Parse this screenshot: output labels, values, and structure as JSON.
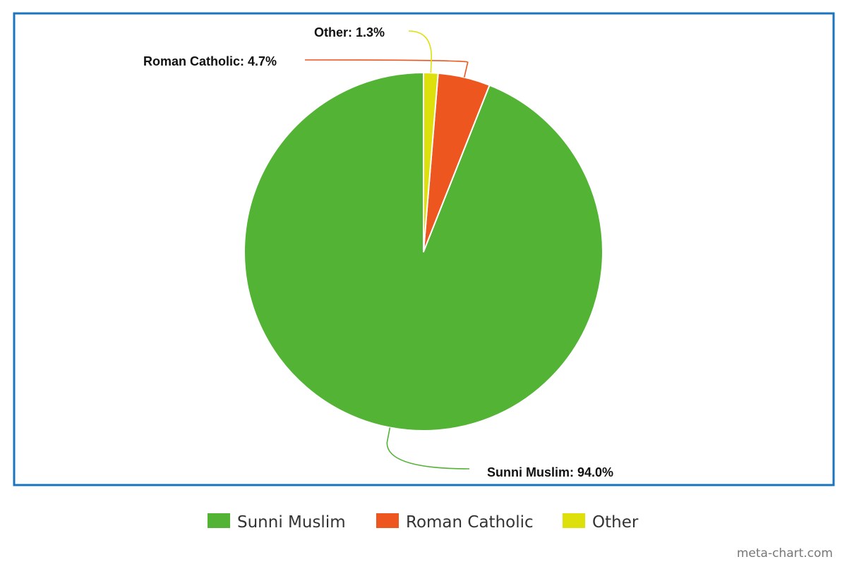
{
  "chart_data": {
    "type": "pie",
    "title": "",
    "categories": [
      "Sunni Muslim",
      "Roman Catholic",
      "Other"
    ],
    "values": [
      94.0,
      4.7,
      1.3
    ],
    "unit": "%",
    "data_labels": [
      "Sunni Muslim: 94.0%",
      "Roman Catholic: 4.7%",
      "Other: 1.3%"
    ],
    "colors": [
      "#52b335",
      "#ee561f",
      "#dde00a"
    ],
    "start_angle": "12 o'clock",
    "direction": "counter-clockwise",
    "legend": {
      "placement": "bottom-center",
      "entries": [
        "Sunni Muslim",
        "Roman Catholic",
        "Other"
      ]
    },
    "frame_color": "#1a74bf"
  },
  "credit": "meta-chart.com"
}
